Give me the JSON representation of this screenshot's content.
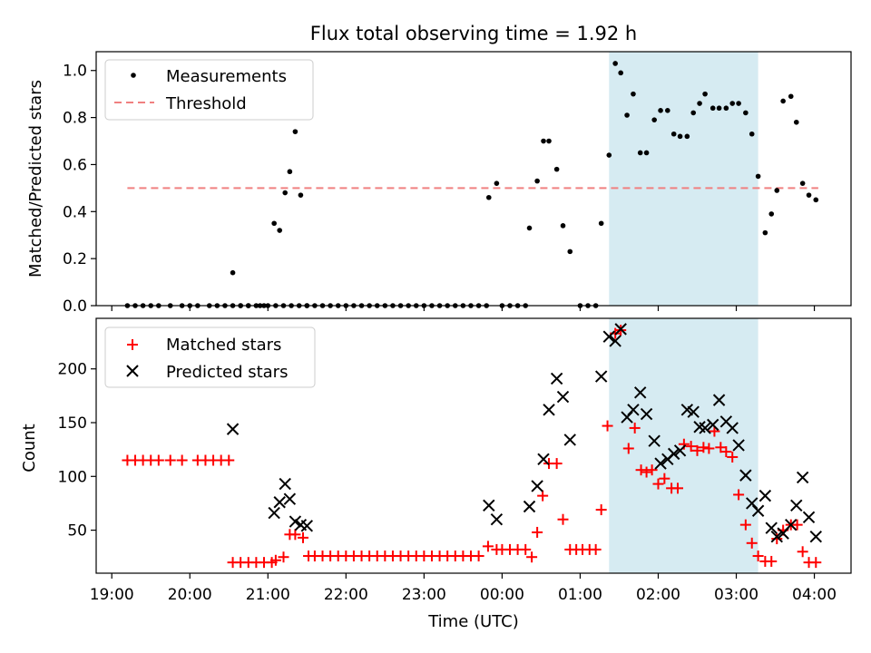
{
  "figure": {
    "title": "Flux total observing time = 1.92 h"
  },
  "colors": {
    "measurements": "#000000",
    "threshold": "#f08080",
    "matched": "#ff0000",
    "predicted": "#000000",
    "highlight": "#add8e6"
  },
  "chart_data": [
    {
      "type": "scatter",
      "panel": "top",
      "ylabel": "Matched/Predicted stars",
      "xlabel": "",
      "ylim": [
        0,
        1.08
      ],
      "yticks": [
        0.0,
        0.2,
        0.4,
        0.6,
        0.8,
        1.0
      ],
      "ytick_labels": [
        "0.0",
        "0.2",
        "0.4",
        "0.6",
        "0.8",
        "1.0"
      ],
      "xlim_hours": [
        18.8,
        28.47
      ],
      "xticks_hours": [
        19,
        20,
        21,
        22,
        23,
        24,
        25,
        26,
        27,
        28
      ],
      "shaded_span_hours": [
        25.37,
        27.28
      ],
      "legend": {
        "placement": "top-left",
        "entries": [
          "Measurements",
          "Threshold"
        ]
      },
      "series": [
        {
          "name": "Measurements",
          "marker": "dot",
          "x_hours": [
            19.2,
            19.3,
            19.4,
            19.5,
            19.6,
            19.75,
            19.9,
            20.0,
            20.1,
            20.25,
            20.35,
            20.45,
            20.55,
            20.65,
            20.75,
            20.9,
            21.0,
            21.1,
            21.2,
            21.3,
            21.4,
            21.5,
            21.6,
            21.7,
            21.8,
            21.9,
            22.0,
            22.1,
            22.2,
            22.3,
            22.4,
            22.5,
            22.6,
            22.7,
            22.8,
            22.9,
            23.0,
            23.1,
            23.2,
            23.3,
            23.4,
            23.5,
            23.6,
            23.7,
            23.8,
            24.0,
            24.1,
            24.2,
            24.3,
            25.0,
            25.1,
            25.2,
            20.55,
            20.65,
            20.75,
            20.85,
            20.95,
            21.08,
            21.15,
            21.22,
            21.28,
            21.35,
            21.42,
            21.5,
            23.83,
            23.93,
            24.35,
            24.45,
            24.53,
            24.6,
            24.7,
            24.78,
            24.87,
            25.27,
            25.37,
            25.45,
            25.52,
            25.6,
            25.68,
            25.77,
            25.85,
            25.95,
            26.03,
            26.12,
            26.2,
            26.28,
            26.37,
            26.45,
            26.53,
            26.6,
            26.7,
            26.78,
            26.87,
            26.95,
            27.03,
            27.12,
            27.2,
            27.28,
            27.37,
            27.45,
            27.52,
            27.6,
            27.7,
            27.77,
            27.85,
            27.93,
            28.02
          ],
          "y": [
            0,
            0,
            0,
            0,
            0,
            0,
            0,
            0,
            0,
            0,
            0,
            0,
            0,
            0,
            0,
            0,
            0,
            0,
            0,
            0,
            0,
            0,
            0,
            0,
            0,
            0,
            0,
            0,
            0,
            0,
            0,
            0,
            0,
            0,
            0,
            0,
            0,
            0,
            0,
            0,
            0,
            0,
            0,
            0,
            0,
            0,
            0,
            0,
            0,
            0,
            0,
            0,
            0.14,
            0,
            0,
            0,
            0,
            0.35,
            0.32,
            0.48,
            0.57,
            0.74,
            0.47,
            0,
            0.46,
            0.52,
            0.33,
            0.53,
            0.7,
            0.7,
            0.58,
            0.34,
            0.23,
            0.35,
            0.64,
            1.03,
            0.99,
            0.81,
            0.9,
            0.65,
            0.65,
            0.79,
            0.83,
            0.83,
            0.73,
            0.72,
            0.72,
            0.82,
            0.86,
            0.9,
            0.84,
            0.84,
            0.84,
            0.86,
            0.86,
            0.82,
            0.73,
            0.55,
            0.31,
            0.39,
            0.49,
            0.87,
            0.89,
            0.78,
            0.52,
            0.47,
            0.45
          ]
        },
        {
          "name": "Threshold",
          "marker": "dashed-line",
          "x_hours": [
            19.2,
            28.05
          ],
          "y": [
            0.5,
            0.5
          ]
        }
      ]
    },
    {
      "type": "scatter",
      "panel": "bottom",
      "ylabel": "Count",
      "xlabel": "Time (UTC)",
      "ylim": [
        10,
        247
      ],
      "yticks": [
        50,
        100,
        150,
        200
      ],
      "ytick_labels": [
        "50",
        "100",
        "150",
        "200"
      ],
      "xlim_hours": [
        18.8,
        28.47
      ],
      "xticks_hours": [
        19,
        20,
        21,
        22,
        23,
        24,
        25,
        26,
        27,
        28
      ],
      "xtick_labels": [
        "19:00",
        "20:00",
        "21:00",
        "22:00",
        "23:00",
        "00:00",
        "01:00",
        "02:00",
        "03:00",
        "04:00"
      ],
      "shaded_span_hours": [
        25.37,
        27.28
      ],
      "legend": {
        "placement": "top-left",
        "entries": [
          "Matched stars",
          "Predicted stars"
        ]
      },
      "series": [
        {
          "name": "Matched stars",
          "marker": "plus",
          "x_hours": [
            19.2,
            19.3,
            19.4,
            19.5,
            19.6,
            19.75,
            19.9,
            20.1,
            20.2,
            20.3,
            20.4,
            20.5,
            20.55,
            20.65,
            20.75,
            20.85,
            20.95,
            21.05,
            21.1,
            21.2,
            21.28,
            21.35,
            21.45,
            21.52,
            21.6,
            21.7,
            21.8,
            21.9,
            22.0,
            22.1,
            22.2,
            22.3,
            22.4,
            22.5,
            22.6,
            22.7,
            22.8,
            22.9,
            23.0,
            23.1,
            23.2,
            23.3,
            23.4,
            23.5,
            23.6,
            23.7,
            23.82,
            23.93,
            24.0,
            24.1,
            24.2,
            24.3,
            24.38,
            24.45,
            24.52,
            24.6,
            24.7,
            24.78,
            24.87,
            24.95,
            25.03,
            25.12,
            25.2,
            25.27,
            25.35,
            25.45,
            25.52,
            25.62,
            25.7,
            25.78,
            25.85,
            25.92,
            26.0,
            26.08,
            26.17,
            26.25,
            26.33,
            26.42,
            26.5,
            26.58,
            26.65,
            26.72,
            26.8,
            26.87,
            26.95,
            27.03,
            27.12,
            27.2,
            27.28,
            27.37,
            27.45,
            27.52,
            27.6,
            27.7,
            27.78,
            27.85,
            27.93,
            28.02
          ],
          "y": [
            115,
            115,
            115,
            115,
            115,
            115,
            115,
            115,
            115,
            115,
            115,
            115,
            20,
            20,
            20,
            20,
            20,
            20,
            22,
            25,
            46,
            46,
            43,
            26,
            26,
            26,
            26,
            26,
            26,
            26,
            26,
            26,
            26,
            26,
            26,
            26,
            26,
            26,
            26,
            26,
            26,
            26,
            26,
            26,
            26,
            26,
            35,
            32,
            32,
            32,
            32,
            32,
            25,
            48,
            82,
            112,
            112,
            60,
            32,
            32,
            32,
            32,
            32,
            69,
            147,
            233,
            236,
            126,
            145,
            106,
            104,
            106,
            93,
            98,
            89,
            89,
            130,
            128,
            124,
            127,
            126,
            142,
            127,
            123,
            118,
            83,
            55,
            38,
            26,
            21,
            21,
            42,
            50,
            55,
            55,
            30,
            20,
            20
          ]
        },
        {
          "name": "Predicted stars",
          "marker": "x",
          "x_hours": [
            20.55,
            21.08,
            21.15,
            21.22,
            21.28,
            21.35,
            21.42,
            21.5,
            23.83,
            23.93,
            24.35,
            24.45,
            24.53,
            24.6,
            24.7,
            24.78,
            24.87,
            25.27,
            25.37,
            25.45,
            25.52,
            25.6,
            25.68,
            25.77,
            25.85,
            25.95,
            26.03,
            26.12,
            26.2,
            26.28,
            26.37,
            26.45,
            26.53,
            26.6,
            26.7,
            26.78,
            26.87,
            26.95,
            27.03,
            27.12,
            27.2,
            27.28,
            27.37,
            27.45,
            27.52,
            27.6,
            27.7,
            27.77,
            27.85,
            27.93,
            28.02
          ],
          "y": [
            144,
            66,
            76,
            93,
            79,
            58,
            55,
            54,
            73,
            60,
            72,
            91,
            116,
            162,
            191,
            174,
            134,
            193,
            230,
            226,
            237,
            155,
            162,
            178,
            158,
            133,
            112,
            116,
            121,
            124,
            162,
            160,
            146,
            145,
            148,
            171,
            151,
            145,
            129,
            101,
            75,
            68,
            82,
            52,
            44,
            47,
            55,
            73,
            99,
            62,
            44
          ]
        }
      ]
    }
  ]
}
